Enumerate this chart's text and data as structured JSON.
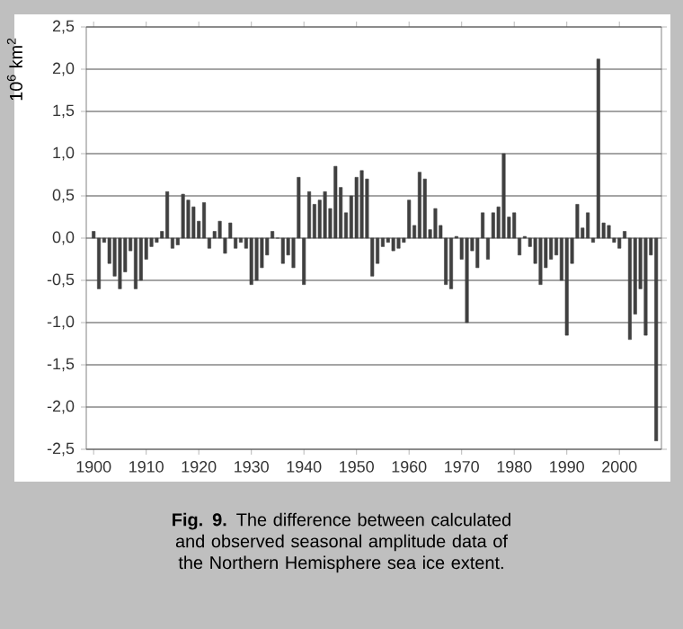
{
  "chart_data": {
    "type": "bar",
    "ylabel": "10$^{6}$ km$^{2}$",
    "color": "#404040",
    "grid": "y",
    "annotations": [
      "**Fig. 9.** The difference between calculated and observed seasonal amplitude data of the Northern Hemisphere sea ice extent."
    ],
    "xlim": [
      1898.6,
      2008
    ],
    "xticks": [
      1900,
      1910,
      1920,
      1930,
      1940,
      1950,
      1960,
      1970,
      1980,
      1990,
      2000
    ],
    "ylim": [
      -2.5,
      2.5
    ],
    "yticks": [
      {
        "value": -2.5,
        "label": "-2,5"
      },
      {
        "value": -2,
        "label": "-2,0"
      },
      {
        "value": -1.5,
        "label": "-1,5"
      },
      {
        "value": -1,
        "label": "-1,0"
      },
      {
        "value": -0.5,
        "label": "-0,5"
      },
      {
        "value": 0,
        "label": "0,0"
      },
      {
        "value": 0.5,
        "label": "0,5"
      },
      {
        "value": 1,
        "label": "1,0"
      },
      {
        "value": 1.5,
        "label": "1,5"
      },
      {
        "value": 2,
        "label": "2,0"
      },
      {
        "value": 2.5,
        "label": "2,5"
      }
    ],
    "x": [
      1900,
      1901,
      1902,
      1903,
      1904,
      1905,
      1906,
      1907,
      1908,
      1909,
      1910,
      1911,
      1912,
      1913,
      1914,
      1915,
      1916,
      1917,
      1918,
      1919,
      1920,
      1921,
      1922,
      1923,
      1924,
      1925,
      1926,
      1927,
      1928,
      1929,
      1930,
      1931,
      1932,
      1933,
      1934,
      1935,
      1936,
      1937,
      1938,
      1939,
      1940,
      1941,
      1942,
      1943,
      1944,
      1945,
      1946,
      1947,
      1948,
      1949,
      1950,
      1951,
      1952,
      1953,
      1954,
      1955,
      1956,
      1957,
      1958,
      1959,
      1960,
      1961,
      1962,
      1963,
      1964,
      1965,
      1966,
      1967,
      1968,
      1969,
      1970,
      1971,
      1972,
      1973,
      1974,
      1975,
      1976,
      1977,
      1978,
      1979,
      1980,
      1981,
      1982,
      1983,
      1984,
      1985,
      1986,
      1987,
      1988,
      1989,
      1990,
      1991,
      1992,
      1993,
      1994,
      1995,
      1996,
      1997,
      1998,
      1999,
      2000,
      2001,
      2002,
      2003,
      2004,
      2005,
      2006,
      2007
    ],
    "values": [
      0.08,
      -0.6,
      -0.05,
      -0.3,
      -0.45,
      -0.6,
      -0.4,
      -0.15,
      -0.6,
      -0.5,
      -0.25,
      -0.1,
      -0.05,
      0.08,
      0.55,
      -0.12,
      -0.08,
      0.52,
      0.45,
      0.37,
      0.2,
      0.42,
      -0.12,
      0.08,
      0.2,
      -0.18,
      0.18,
      -0.12,
      -0.05,
      -0.12,
      -0.55,
      -0.5,
      -0.35,
      -0.2,
      0.08,
      0.0,
      -0.3,
      -0.2,
      -0.35,
      0.72,
      -0.55,
      0.55,
      0.4,
      0.45,
      0.55,
      0.35,
      0.85,
      0.6,
      0.3,
      0.5,
      0.72,
      0.8,
      0.7,
      -0.45,
      -0.3,
      -0.1,
      -0.05,
      -0.15,
      -0.12,
      -0.05,
      0.45,
      0.15,
      0.78,
      0.7,
      0.1,
      0.35,
      0.15,
      -0.55,
      -0.6,
      0.02,
      -0.25,
      -1.0,
      -0.15,
      -0.35,
      0.3,
      -0.25,
      0.3,
      0.37,
      1.0,
      0.25,
      0.3,
      -0.2,
      0.02,
      -0.1,
      -0.3,
      -0.55,
      -0.35,
      -0.25,
      -0.2,
      -0.5,
      -1.15,
      -0.3,
      0.4,
      0.12,
      0.3,
      -0.05,
      2.12,
      0.18,
      0.15,
      -0.05,
      -0.12,
      0.08,
      -1.2,
      -0.9,
      -0.6,
      -1.15,
      -0.2,
      -2.4
    ]
  }
}
